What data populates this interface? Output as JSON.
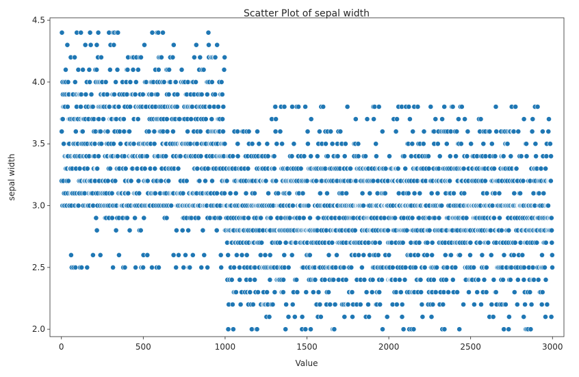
{
  "chart_data": {
    "type": "scatter",
    "title": "Scatter Plot of sepal width",
    "xlabel": "Value",
    "ylabel": "sepal width",
    "xlim": [
      -70,
      3070
    ],
    "ylim": [
      1.94,
      4.52
    ],
    "xticks": [
      0,
      500,
      1000,
      1500,
      2000,
      2500,
      3000
    ],
    "yticks": [
      2.0,
      2.5,
      3.0,
      3.5,
      4.0,
      4.5
    ],
    "xtick_labels": [
      "0",
      "500",
      "1000",
      "1500",
      "2000",
      "2500",
      "3000"
    ],
    "ytick_labels": [
      "2.0",
      "2.5",
      "3.0",
      "3.5",
      "4.0",
      "4.5"
    ],
    "grid": false,
    "legend": "none",
    "marker_color": "#1f77b4",
    "marker_edge_color": "#ffffff",
    "series": [
      {
        "segments": [
          {
            "x_range": [
              0,
              1000
            ],
            "count": 1000,
            "values": [
              2.5,
              2.6,
              2.8,
              2.9,
              3.0,
              3.1,
              3.2,
              3.3,
              3.4,
              3.5,
              3.6,
              3.7,
              3.8,
              3.9,
              4.0,
              4.1,
              4.2,
              4.3,
              4.4
            ],
            "weights": [
              2,
              1,
              1,
              3,
              13,
              9,
              6,
              6,
              9,
              9,
              4,
              6,
              8,
              6,
              5,
              2,
              3,
              1,
              2
            ]
          },
          {
            "x_range": [
              1000,
              3000
            ],
            "count": 2000,
            "values": [
              2.0,
              2.1,
              2.2,
              2.3,
              2.4,
              2.5,
              2.6,
              2.7,
              2.8,
              2.9,
              3.0,
              3.1,
              3.2,
              3.3,
              3.4,
              3.5,
              3.6,
              3.7,
              3.8
            ],
            "weights": [
              1,
              1,
              4,
              4,
              4,
              8,
              5,
              9,
              14,
              10,
              17,
              4,
              12,
              9,
              5,
              2,
              2,
              1,
              2
            ]
          }
        ]
      }
    ]
  }
}
